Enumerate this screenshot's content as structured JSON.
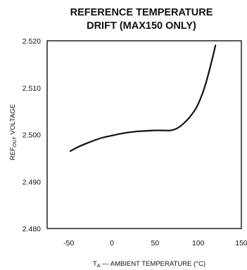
{
  "chart_data": {
    "type": "line",
    "title": "REFERENCE TEMPERATURE",
    "subtitle": "DRIFT (MAX150 ONLY)",
    "xlabel_prefix": "T",
    "xlabel_sub": "A",
    "xlabel_rest": " — AMBIENT TEMPERATURE (°C)",
    "ylabel_prefix": "REF",
    "ylabel_sub": "OUT",
    "ylabel_rest": " VOLTAGE",
    "xlim": [
      -75,
      150
    ],
    "ylim": [
      2.48,
      2.52
    ],
    "xticks": [
      "-50",
      "0",
      "50",
      "100",
      "150"
    ],
    "xtick_values": [
      -50,
      0,
      50,
      100,
      150
    ],
    "yticks": [
      "2.520",
      "2.510",
      "2.500",
      "2.490",
      "2.480"
    ],
    "ytick_values": [
      2.52,
      2.51,
      2.5,
      2.49,
      2.48
    ],
    "grid": false,
    "series": [
      {
        "x": [
          -48,
          -40,
          -30,
          -20,
          -10,
          0,
          10,
          20,
          30,
          40,
          50,
          60,
          68,
          75,
          82,
          90,
          98,
          105,
          110,
          115,
          120
        ],
        "y": [
          2.4965,
          2.4973,
          2.4981,
          2.4988,
          2.4994,
          2.4998,
          2.5002,
          2.5005,
          2.5007,
          2.5008,
          2.5009,
          2.5009,
          2.5009,
          2.5013,
          2.5022,
          2.5037,
          2.5058,
          2.5088,
          2.5117,
          2.5152,
          2.519
        ]
      }
    ]
  }
}
